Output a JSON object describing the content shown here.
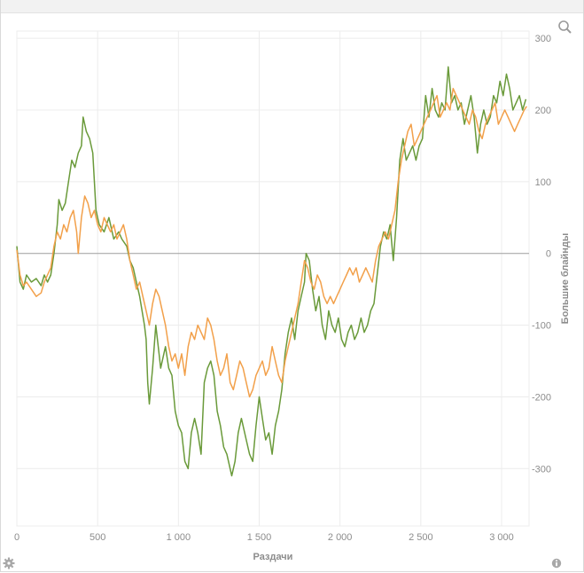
{
  "chart_data": {
    "type": "line",
    "xlabel": "Раздачи",
    "ylabel": "Большие блайнды",
    "xlim": [
      0,
      3170
    ],
    "ylim": [
      -380,
      310
    ],
    "x_ticks": [
      "0",
      "500",
      "1 000",
      "1 500",
      "2 000",
      "2 500",
      "3 000"
    ],
    "x_tick_values": [
      0,
      500,
      1000,
      1500,
      2000,
      2500,
      3000
    ],
    "y_ticks": [
      "300",
      "200",
      "100",
      "0",
      "-100",
      "-200",
      "-300"
    ],
    "y_tick_values": [
      300,
      200,
      100,
      0,
      -100,
      -200,
      -300
    ],
    "grid": true,
    "series": [
      {
        "color": "#6a9a3a",
        "points": [
          [
            0,
            10
          ],
          [
            20,
            -40
          ],
          [
            40,
            -50
          ],
          [
            60,
            -30
          ],
          [
            90,
            -40
          ],
          [
            120,
            -35
          ],
          [
            150,
            -45
          ],
          [
            170,
            -30
          ],
          [
            190,
            -40
          ],
          [
            210,
            -30
          ],
          [
            230,
            0
          ],
          [
            250,
            40
          ],
          [
            260,
            75
          ],
          [
            280,
            60
          ],
          [
            300,
            70
          ],
          [
            320,
            100
          ],
          [
            340,
            130
          ],
          [
            360,
            120
          ],
          [
            380,
            140
          ],
          [
            400,
            150
          ],
          [
            410,
            190
          ],
          [
            430,
            170
          ],
          [
            450,
            160
          ],
          [
            470,
            140
          ],
          [
            480,
            100
          ],
          [
            490,
            60
          ],
          [
            510,
            40
          ],
          [
            540,
            30
          ],
          [
            570,
            50
          ],
          [
            600,
            20
          ],
          [
            630,
            30
          ],
          [
            650,
            20
          ],
          [
            680,
            10
          ],
          [
            700,
            -10
          ],
          [
            720,
            -20
          ],
          [
            740,
            -40
          ],
          [
            760,
            -60
          ],
          [
            790,
            -100
          ],
          [
            800,
            -120
          ],
          [
            810,
            -180
          ],
          [
            820,
            -210
          ],
          [
            840,
            -160
          ],
          [
            860,
            -100
          ],
          [
            880,
            -140
          ],
          [
            890,
            -160
          ],
          [
            920,
            -130
          ],
          [
            940,
            -160
          ],
          [
            960,
            -170
          ],
          [
            980,
            -220
          ],
          [
            1000,
            -240
          ],
          [
            1020,
            -250
          ],
          [
            1040,
            -290
          ],
          [
            1060,
            -300
          ],
          [
            1080,
            -250
          ],
          [
            1100,
            -230
          ],
          [
            1120,
            -250
          ],
          [
            1140,
            -280
          ],
          [
            1160,
            -180
          ],
          [
            1180,
            -160
          ],
          [
            1200,
            -150
          ],
          [
            1220,
            -170
          ],
          [
            1240,
            -220
          ],
          [
            1260,
            -240
          ],
          [
            1280,
            -270
          ],
          [
            1300,
            -280
          ],
          [
            1330,
            -310
          ],
          [
            1350,
            -290
          ],
          [
            1370,
            -250
          ],
          [
            1390,
            -230
          ],
          [
            1420,
            -260
          ],
          [
            1440,
            -280
          ],
          [
            1460,
            -290
          ],
          [
            1480,
            -240
          ],
          [
            1500,
            -200
          ],
          [
            1520,
            -230
          ],
          [
            1540,
            -260
          ],
          [
            1560,
            -250
          ],
          [
            1580,
            -280
          ],
          [
            1600,
            -240
          ],
          [
            1620,
            -220
          ],
          [
            1640,
            -190
          ],
          [
            1660,
            -140
          ],
          [
            1680,
            -110
          ],
          [
            1700,
            -90
          ],
          [
            1720,
            -120
          ],
          [
            1740,
            -80
          ],
          [
            1760,
            -60
          ],
          [
            1780,
            -40
          ],
          [
            1790,
            0
          ],
          [
            1810,
            -10
          ],
          [
            1830,
            -50
          ],
          [
            1850,
            -80
          ],
          [
            1870,
            -60
          ],
          [
            1890,
            -100
          ],
          [
            1910,
            -120
          ],
          [
            1930,
            -80
          ],
          [
            1950,
            -100
          ],
          [
            1970,
            -110
          ],
          [
            1990,
            -90
          ],
          [
            2010,
            -120
          ],
          [
            2030,
            -130
          ],
          [
            2050,
            -110
          ],
          [
            2070,
            -100
          ],
          [
            2090,
            -120
          ],
          [
            2110,
            -110
          ],
          [
            2130,
            -90
          ],
          [
            2150,
            -110
          ],
          [
            2170,
            -100
          ],
          [
            2190,
            -80
          ],
          [
            2210,
            -70
          ],
          [
            2230,
            -30
          ],
          [
            2250,
            10
          ],
          [
            2270,
            30
          ],
          [
            2290,
            20
          ],
          [
            2310,
            40
          ],
          [
            2330,
            -10
          ],
          [
            2340,
            20
          ],
          [
            2350,
            50
          ],
          [
            2370,
            130
          ],
          [
            2390,
            160
          ],
          [
            2410,
            130
          ],
          [
            2430,
            140
          ],
          [
            2450,
            150
          ],
          [
            2470,
            130
          ],
          [
            2490,
            150
          ],
          [
            2510,
            160
          ],
          [
            2530,
            220
          ],
          [
            2550,
            190
          ],
          [
            2570,
            230
          ],
          [
            2590,
            200
          ],
          [
            2610,
            190
          ],
          [
            2630,
            210
          ],
          [
            2650,
            200
          ],
          [
            2670,
            260
          ],
          [
            2690,
            210
          ],
          [
            2710,
            220
          ],
          [
            2730,
            200
          ],
          [
            2750,
            210
          ],
          [
            2770,
            180
          ],
          [
            2790,
            200
          ],
          [
            2810,
            220
          ],
          [
            2830,
            190
          ],
          [
            2850,
            140
          ],
          [
            2870,
            180
          ],
          [
            2890,
            200
          ],
          [
            2910,
            180
          ],
          [
            2930,
            190
          ],
          [
            2950,
            220
          ],
          [
            2970,
            210
          ],
          [
            2990,
            240
          ],
          [
            3010,
            220
          ],
          [
            3030,
            250
          ],
          [
            3050,
            230
          ],
          [
            3070,
            200
          ],
          [
            3090,
            210
          ],
          [
            3110,
            220
          ],
          [
            3130,
            200
          ],
          [
            3150,
            215
          ]
        ]
      },
      {
        "color": "#f2a04a",
        "points": [
          [
            0,
            5
          ],
          [
            20,
            -30
          ],
          [
            40,
            -45
          ],
          [
            60,
            -40
          ],
          [
            90,
            -50
          ],
          [
            120,
            -60
          ],
          [
            150,
            -55
          ],
          [
            170,
            -40
          ],
          [
            190,
            -30
          ],
          [
            210,
            -20
          ],
          [
            230,
            10
          ],
          [
            250,
            30
          ],
          [
            270,
            20
          ],
          [
            290,
            40
          ],
          [
            310,
            30
          ],
          [
            330,
            50
          ],
          [
            350,
            60
          ],
          [
            370,
            30
          ],
          [
            380,
            0
          ],
          [
            400,
            50
          ],
          [
            420,
            80
          ],
          [
            440,
            70
          ],
          [
            460,
            50
          ],
          [
            480,
            60
          ],
          [
            500,
            40
          ],
          [
            520,
            30
          ],
          [
            540,
            50
          ],
          [
            560,
            40
          ],
          [
            580,
            30
          ],
          [
            600,
            40
          ],
          [
            620,
            20
          ],
          [
            640,
            30
          ],
          [
            660,
            40
          ],
          [
            680,
            20
          ],
          [
            700,
            -10
          ],
          [
            720,
            -30
          ],
          [
            740,
            -50
          ],
          [
            760,
            -40
          ],
          [
            780,
            -60
          ],
          [
            800,
            -80
          ],
          [
            820,
            -100
          ],
          [
            840,
            -70
          ],
          [
            860,
            -50
          ],
          [
            880,
            -60
          ],
          [
            900,
            -80
          ],
          [
            920,
            -100
          ],
          [
            940,
            -130
          ],
          [
            960,
            -150
          ],
          [
            980,
            -140
          ],
          [
            1000,
            -160
          ],
          [
            1020,
            -140
          ],
          [
            1040,
            -170
          ],
          [
            1060,
            -130
          ],
          [
            1080,
            -110
          ],
          [
            1100,
            -120
          ],
          [
            1120,
            -100
          ],
          [
            1140,
            -110
          ],
          [
            1160,
            -120
          ],
          [
            1180,
            -90
          ],
          [
            1200,
            -100
          ],
          [
            1220,
            -120
          ],
          [
            1240,
            -150
          ],
          [
            1260,
            -170
          ],
          [
            1280,
            -160
          ],
          [
            1300,
            -140
          ],
          [
            1320,
            -180
          ],
          [
            1340,
            -190
          ],
          [
            1360,
            -170
          ],
          [
            1380,
            -150
          ],
          [
            1400,
            -160
          ],
          [
            1420,
            -180
          ],
          [
            1440,
            -200
          ],
          [
            1460,
            -190
          ],
          [
            1480,
            -170
          ],
          [
            1500,
            -160
          ],
          [
            1520,
            -150
          ],
          [
            1540,
            -170
          ],
          [
            1560,
            -160
          ],
          [
            1580,
            -130
          ],
          [
            1600,
            -150
          ],
          [
            1620,
            -170
          ],
          [
            1640,
            -180
          ],
          [
            1660,
            -150
          ],
          [
            1680,
            -130
          ],
          [
            1700,
            -110
          ],
          [
            1720,
            -90
          ],
          [
            1740,
            -70
          ],
          [
            1760,
            -40
          ],
          [
            1780,
            -10
          ],
          [
            1800,
            -20
          ],
          [
            1820,
            -40
          ],
          [
            1840,
            -50
          ],
          [
            1860,
            -30
          ],
          [
            1880,
            -40
          ],
          [
            1900,
            -60
          ],
          [
            1920,
            -70
          ],
          [
            1940,
            -60
          ],
          [
            1960,
            -70
          ],
          [
            1980,
            -60
          ],
          [
            2000,
            -50
          ],
          [
            2020,
            -40
          ],
          [
            2040,
            -30
          ],
          [
            2060,
            -20
          ],
          [
            2080,
            -30
          ],
          [
            2100,
            -20
          ],
          [
            2120,
            -40
          ],
          [
            2140,
            -30
          ],
          [
            2160,
            -20
          ],
          [
            2180,
            -30
          ],
          [
            2200,
            -40
          ],
          [
            2220,
            -10
          ],
          [
            2240,
            10
          ],
          [
            2260,
            20
          ],
          [
            2280,
            30
          ],
          [
            2300,
            20
          ],
          [
            2320,
            40
          ],
          [
            2340,
            60
          ],
          [
            2360,
            100
          ],
          [
            2380,
            130
          ],
          [
            2400,
            150
          ],
          [
            2420,
            170
          ],
          [
            2440,
            180
          ],
          [
            2460,
            150
          ],
          [
            2480,
            160
          ],
          [
            2500,
            170
          ],
          [
            2520,
            180
          ],
          [
            2540,
            190
          ],
          [
            2560,
            200
          ],
          [
            2580,
            210
          ],
          [
            2600,
            220
          ],
          [
            2620,
            190
          ],
          [
            2640,
            200
          ],
          [
            2660,
            210
          ],
          [
            2680,
            200
          ],
          [
            2700,
            230
          ],
          [
            2720,
            220
          ],
          [
            2740,
            210
          ],
          [
            2760,
            200
          ],
          [
            2780,
            190
          ],
          [
            2800,
            180
          ],
          [
            2820,
            200
          ],
          [
            2840,
            190
          ],
          [
            2860,
            170
          ],
          [
            2880,
            160
          ],
          [
            2900,
            180
          ],
          [
            2920,
            190
          ],
          [
            2940,
            200
          ],
          [
            2960,
            210
          ],
          [
            2980,
            180
          ],
          [
            3000,
            190
          ],
          [
            3020,
            200
          ],
          [
            3040,
            190
          ],
          [
            3060,
            180
          ],
          [
            3080,
            170
          ],
          [
            3100,
            180
          ],
          [
            3120,
            190
          ],
          [
            3140,
            200
          ],
          [
            3155,
            205
          ]
        ]
      }
    ]
  }
}
